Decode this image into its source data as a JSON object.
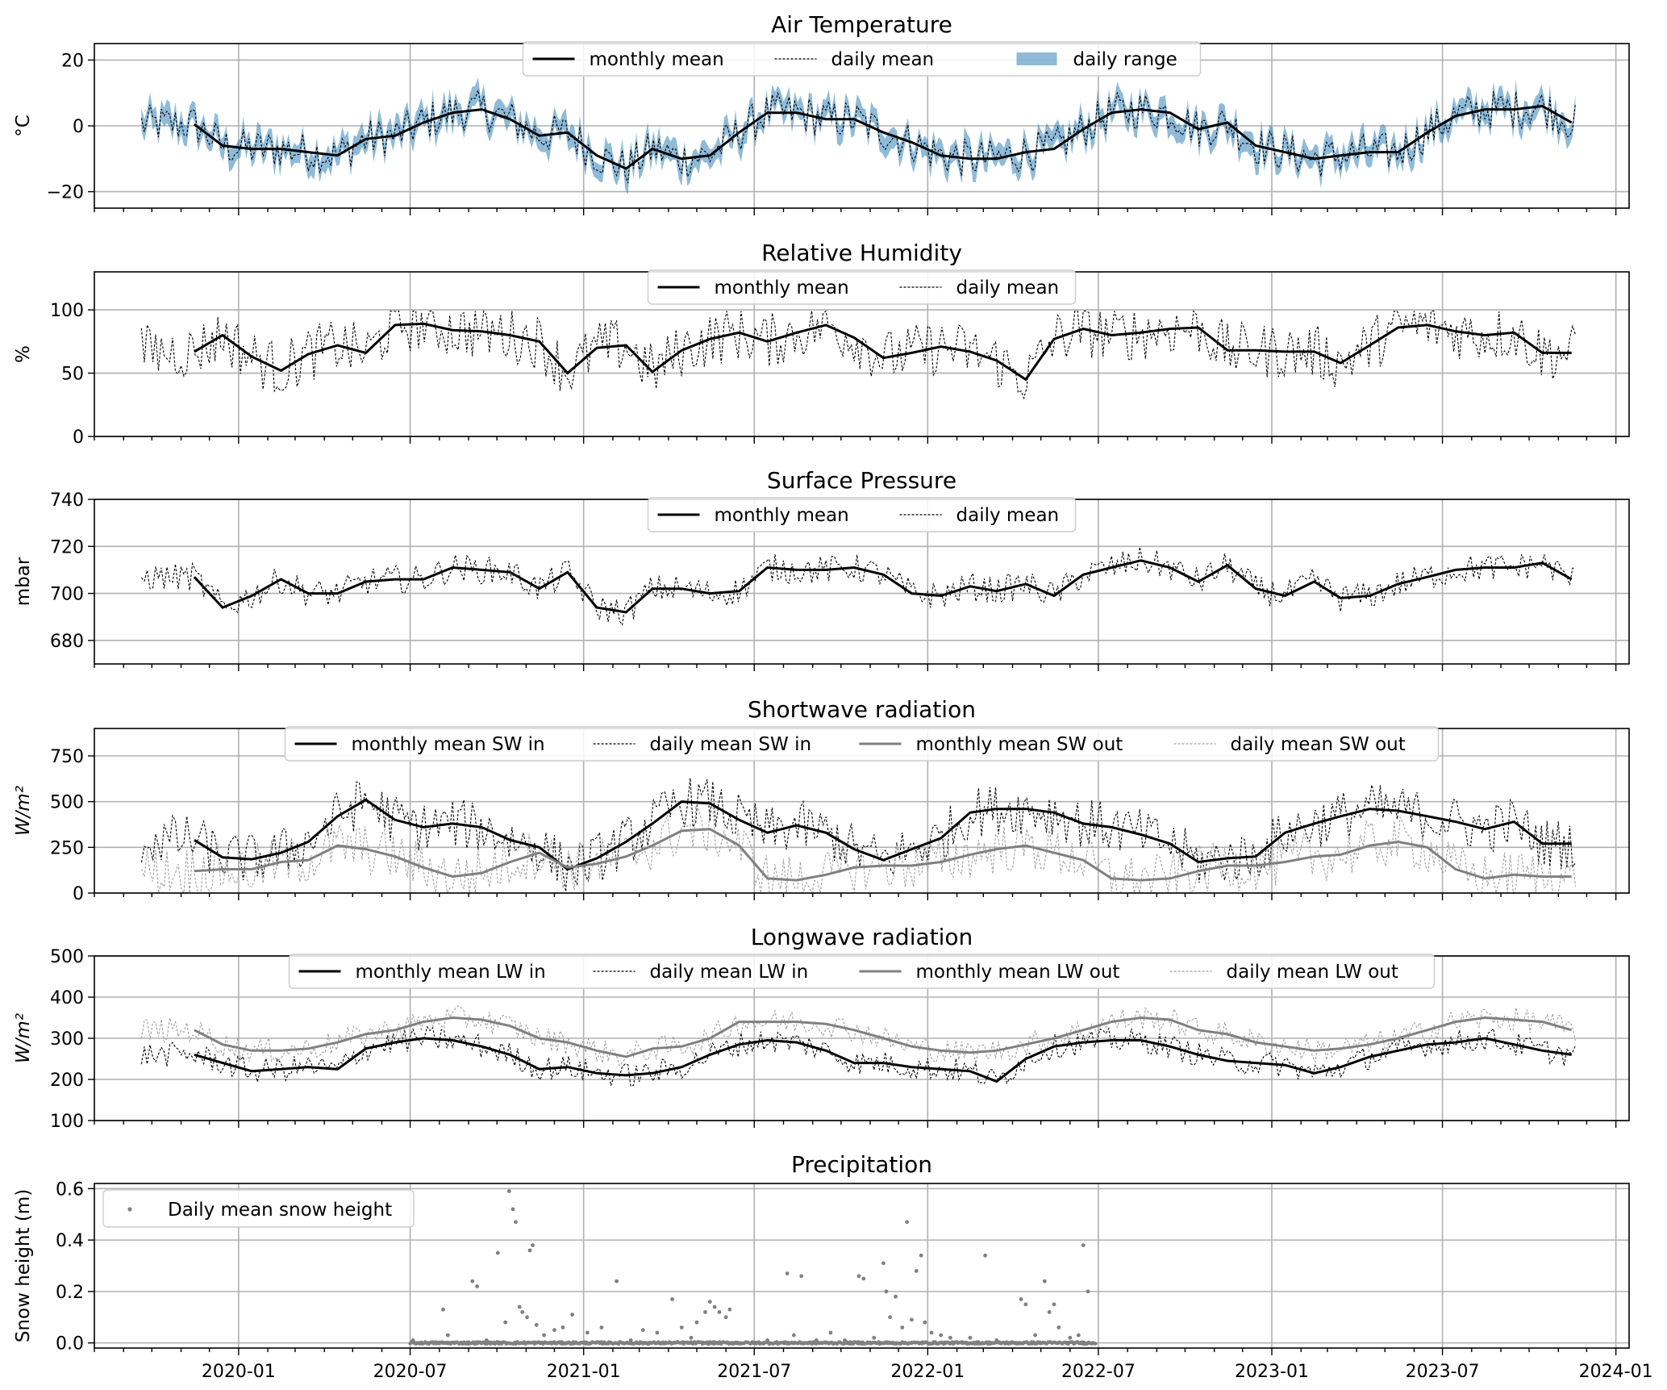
{
  "x_ticks": [
    "2020-01",
    "2020-07",
    "2021-01",
    "2021-07",
    "2022-01",
    "2022-07",
    "2023-01",
    "2023-07",
    "2024-01"
  ],
  "colors": {
    "black": "#000000",
    "gray": "#808080",
    "light_gray": "#a0a0a0",
    "range_blue": "#1f77b4",
    "grid": "#b0b0b0"
  },
  "chart_data": [
    {
      "type": "line",
      "title": "Air Temperature",
      "ylabel": "°C",
      "ylim": [
        -25,
        25
      ],
      "yticks": [
        -20,
        0,
        20
      ],
      "xlim": [
        "2019-08-01",
        "2024-01-15"
      ],
      "legend": [
        "monthly mean",
        "daily mean",
        "daily range"
      ],
      "monthly_x": [
        "2019-11",
        "2019-12",
        "2020-01",
        "2020-02",
        "2020-03",
        "2020-04",
        "2020-05",
        "2020-06",
        "2020-07",
        "2020-08",
        "2020-09",
        "2020-10",
        "2020-11",
        "2020-12",
        "2021-01",
        "2021-02",
        "2021-03",
        "2021-04",
        "2021-05",
        "2021-06",
        "2021-07",
        "2021-08",
        "2021-09",
        "2021-10",
        "2021-11",
        "2021-12",
        "2022-01",
        "2022-02",
        "2022-03",
        "2022-04",
        "2022-05",
        "2022-06",
        "2022-07",
        "2022-08",
        "2022-09",
        "2022-10",
        "2022-11",
        "2022-12",
        "2023-01",
        "2023-02",
        "2023-03",
        "2023-04",
        "2023-05",
        "2023-06",
        "2023-07",
        "2023-08",
        "2023-09",
        "2023-10",
        "2023-11"
      ],
      "monthly_mean": [
        0.5,
        -6,
        -7,
        -7,
        -8,
        -9,
        -4,
        -3,
        1,
        4,
        5,
        2,
        -3,
        -2,
        -9,
        -13,
        -7,
        -10,
        -9,
        -2,
        4,
        4,
        2,
        2,
        -2,
        -5,
        -9,
        -10,
        -10,
        -8,
        -7,
        -1,
        4,
        5,
        4,
        -1,
        1,
        -6,
        -8,
        -10,
        -9,
        -8,
        -8,
        -2,
        3,
        5,
        5,
        6,
        1
      ]
    },
    {
      "type": "line",
      "title": "Relative Humidity",
      "ylabel": "%",
      "ylim": [
        0,
        130
      ],
      "yticks": [
        0,
        50,
        100
      ],
      "legend": [
        "monthly mean",
        "daily mean"
      ],
      "monthly_x": [
        "2019-11",
        "2019-12",
        "2020-01",
        "2020-02",
        "2020-03",
        "2020-04",
        "2020-05",
        "2020-06",
        "2020-07",
        "2020-08",
        "2020-09",
        "2020-10",
        "2020-11",
        "2020-12",
        "2021-01",
        "2021-02",
        "2021-03",
        "2021-04",
        "2021-05",
        "2021-06",
        "2021-07",
        "2021-08",
        "2021-09",
        "2021-10",
        "2021-11",
        "2021-12",
        "2022-01",
        "2022-02",
        "2022-03",
        "2022-04",
        "2022-05",
        "2022-06",
        "2022-07",
        "2022-08",
        "2022-09",
        "2022-10",
        "2022-11",
        "2022-12",
        "2023-01",
        "2023-02",
        "2023-03",
        "2023-04",
        "2023-05",
        "2023-06",
        "2023-07",
        "2023-08",
        "2023-09",
        "2023-10",
        "2023-11"
      ],
      "monthly_mean": [
        67,
        80,
        63,
        52,
        65,
        72,
        66,
        88,
        89,
        84,
        83,
        80,
        75,
        50,
        70,
        72,
        51,
        68,
        77,
        82,
        75,
        82,
        88,
        78,
        62,
        66,
        71,
        67,
        60,
        45,
        77,
        85,
        80,
        82,
        85,
        86,
        68,
        68,
        67,
        67,
        58,
        72,
        86,
        88,
        83,
        80,
        82,
        66,
        66
      ]
    },
    {
      "type": "line",
      "title": "Surface Pressure",
      "ylabel": "mbar",
      "ylim": [
        670,
        740
      ],
      "yticks": [
        680,
        700,
        720,
        740
      ],
      "legend": [
        "monthly mean",
        "daily mean"
      ],
      "monthly_x": [
        "2019-11",
        "2019-12",
        "2020-01",
        "2020-02",
        "2020-03",
        "2020-04",
        "2020-05",
        "2020-06",
        "2020-07",
        "2020-08",
        "2020-09",
        "2020-10",
        "2020-11",
        "2020-12",
        "2021-01",
        "2021-02",
        "2021-03",
        "2021-04",
        "2021-05",
        "2021-06",
        "2021-07",
        "2021-08",
        "2021-09",
        "2021-10",
        "2021-11",
        "2021-12",
        "2022-01",
        "2022-02",
        "2022-03",
        "2022-04",
        "2022-05",
        "2022-06",
        "2022-07",
        "2022-08",
        "2022-09",
        "2022-10",
        "2022-11",
        "2022-12",
        "2023-01",
        "2023-02",
        "2023-03",
        "2023-04",
        "2023-05",
        "2023-06",
        "2023-07",
        "2023-08",
        "2023-09",
        "2023-10",
        "2023-11"
      ],
      "monthly_mean": [
        707,
        694,
        699,
        706,
        700,
        700,
        705,
        706,
        706,
        711,
        710,
        709,
        702,
        709,
        694,
        692,
        702,
        702,
        700,
        701,
        711,
        710,
        710,
        711,
        708,
        700,
        699,
        703,
        701,
        704,
        699,
        708,
        711,
        714,
        711,
        705,
        712,
        702,
        699,
        705,
        698,
        699,
        704,
        707,
        710,
        711,
        711,
        713,
        706
      ]
    },
    {
      "type": "line",
      "title": "Shortwave radiation",
      "ylabel": "W/m²",
      "ylim": [
        0,
        900
      ],
      "yticks": [
        0,
        250,
        500,
        750
      ],
      "legend": [
        "monthly mean SW in",
        "daily mean SW in",
        "monthly mean SW out",
        "daily mean SW out"
      ],
      "monthly_x": [
        "2019-11",
        "2019-12",
        "2020-01",
        "2020-02",
        "2020-03",
        "2020-04",
        "2020-05",
        "2020-06",
        "2020-07",
        "2020-08",
        "2020-09",
        "2020-10",
        "2020-11",
        "2020-12",
        "2021-01",
        "2021-02",
        "2021-03",
        "2021-04",
        "2021-05",
        "2021-06",
        "2021-07",
        "2021-08",
        "2021-09",
        "2021-10",
        "2021-11",
        "2021-12",
        "2022-01",
        "2022-02",
        "2022-03",
        "2022-04",
        "2022-05",
        "2022-06",
        "2022-07",
        "2022-08",
        "2022-09",
        "2022-10",
        "2022-11",
        "2022-12",
        "2023-01",
        "2023-02",
        "2023-03",
        "2023-04",
        "2023-05",
        "2023-06",
        "2023-07",
        "2023-08",
        "2023-09",
        "2023-10",
        "2023-11"
      ],
      "series": [
        {
          "name": "monthly mean SW in",
          "values": [
            290,
            195,
            185,
            220,
            280,
            420,
            510,
            400,
            360,
            380,
            360,
            290,
            250,
            130,
            190,
            280,
            380,
            500,
            490,
            400,
            330,
            370,
            330,
            240,
            180,
            240,
            300,
            440,
            460,
            460,
            440,
            380,
            360,
            320,
            270,
            170,
            190,
            200,
            330,
            380,
            420,
            460,
            450,
            420,
            390,
            350,
            390,
            270,
            270
          ]
        },
        {
          "name": "monthly mean SW out",
          "values": [
            120,
            130,
            130,
            170,
            180,
            260,
            240,
            200,
            140,
            90,
            110,
            170,
            220,
            140,
            160,
            200,
            260,
            340,
            350,
            260,
            80,
            70,
            100,
            140,
            150,
            150,
            170,
            210,
            240,
            260,
            220,
            180,
            80,
            70,
            80,
            120,
            150,
            150,
            170,
            200,
            210,
            260,
            280,
            250,
            130,
            80,
            100,
            90,
            90
          ]
        }
      ]
    },
    {
      "type": "line",
      "title": "Longwave radiation",
      "ylabel": "W/m²",
      "ylim": [
        100,
        500
      ],
      "yticks": [
        100,
        200,
        300,
        400,
        500
      ],
      "legend": [
        "monthly mean LW in",
        "daily mean LW in",
        "monthly mean LW out",
        "daily mean LW out"
      ],
      "monthly_x": [
        "2019-11",
        "2019-12",
        "2020-01",
        "2020-02",
        "2020-03",
        "2020-04",
        "2020-05",
        "2020-06",
        "2020-07",
        "2020-08",
        "2020-09",
        "2020-10",
        "2020-11",
        "2020-12",
        "2021-01",
        "2021-02",
        "2021-03",
        "2021-04",
        "2021-05",
        "2021-06",
        "2021-07",
        "2021-08",
        "2021-09",
        "2021-10",
        "2021-11",
        "2021-12",
        "2022-01",
        "2022-02",
        "2022-03",
        "2022-04",
        "2022-05",
        "2022-06",
        "2022-07",
        "2022-08",
        "2022-09",
        "2022-10",
        "2022-11",
        "2022-12",
        "2023-01",
        "2023-02",
        "2023-03",
        "2023-04",
        "2023-05",
        "2023-06",
        "2023-07",
        "2023-08",
        "2023-09",
        "2023-10",
        "2023-11"
      ],
      "series": [
        {
          "name": "monthly mean LW in",
          "values": [
            260,
            240,
            220,
            225,
            230,
            225,
            275,
            290,
            300,
            295,
            280,
            260,
            225,
            230,
            215,
            210,
            215,
            230,
            260,
            285,
            295,
            290,
            270,
            240,
            240,
            230,
            225,
            220,
            195,
            250,
            280,
            290,
            295,
            295,
            280,
            260,
            245,
            240,
            235,
            215,
            230,
            255,
            270,
            285,
            290,
            300,
            285,
            270,
            260
          ]
        },
        {
          "name": "monthly mean LW out",
          "values": [
            320,
            285,
            270,
            270,
            275,
            290,
            310,
            320,
            340,
            350,
            345,
            330,
            300,
            290,
            270,
            255,
            275,
            280,
            300,
            340,
            340,
            340,
            335,
            320,
            300,
            280,
            270,
            265,
            270,
            285,
            300,
            320,
            340,
            350,
            345,
            320,
            310,
            290,
            280,
            270,
            275,
            285,
            300,
            320,
            340,
            350,
            345,
            340,
            320
          ]
        }
      ]
    },
    {
      "type": "scatter",
      "title": "Precipitation",
      "ylabel": "Snow height (m)",
      "ylim": [
        -0.02,
        0.62
      ],
      "yticks": [
        0.0,
        0.2,
        0.4,
        0.6
      ],
      "legend": [
        "Daily mean snow height"
      ],
      "legend_position": "top-left",
      "points": [
        [
          "2020-07-04",
          0.01
        ],
        [
          "2020-07-20",
          0.0
        ],
        [
          "2020-08-05",
          0.13
        ],
        [
          "2020-08-10",
          0.03
        ],
        [
          "2020-08-25",
          0.0
        ],
        [
          "2020-09-05",
          0.24
        ],
        [
          "2020-09-10",
          0.22
        ],
        [
          "2020-09-20",
          0.01
        ],
        [
          "2020-10-02",
          0.35
        ],
        [
          "2020-10-10",
          0.08
        ],
        [
          "2020-10-14",
          0.59
        ],
        [
          "2020-10-18",
          0.52
        ],
        [
          "2020-10-21",
          0.47
        ],
        [
          "2020-10-25",
          0.14
        ],
        [
          "2020-10-28",
          0.12
        ],
        [
          "2020-11-02",
          0.1
        ],
        [
          "2020-11-05",
          0.36
        ],
        [
          "2020-11-08",
          0.38
        ],
        [
          "2020-11-12",
          0.07
        ],
        [
          "2020-11-20",
          0.03
        ],
        [
          "2020-12-01",
          0.05
        ],
        [
          "2020-12-10",
          0.06
        ],
        [
          "2020-12-20",
          0.11
        ],
        [
          "2021-01-05",
          0.04
        ],
        [
          "2021-01-20",
          0.06
        ],
        [
          "2021-02-05",
          0.24
        ],
        [
          "2021-02-20",
          0.01
        ],
        [
          "2021-03-05",
          0.05
        ],
        [
          "2021-03-20",
          0.04
        ],
        [
          "2021-04-05",
          0.17
        ],
        [
          "2021-04-15",
          0.06
        ],
        [
          "2021-04-25",
          0.02
        ],
        [
          "2021-05-01",
          0.08
        ],
        [
          "2021-05-10",
          0.12
        ],
        [
          "2021-05-15",
          0.16
        ],
        [
          "2021-05-20",
          0.14
        ],
        [
          "2021-05-25",
          0.12
        ],
        [
          "2021-06-01",
          0.1
        ],
        [
          "2021-06-05",
          0.13
        ],
        [
          "2021-07-15",
          0.01
        ],
        [
          "2021-08-05",
          0.27
        ],
        [
          "2021-08-12",
          0.03
        ],
        [
          "2021-08-20",
          0.26
        ],
        [
          "2021-09-05",
          0.01
        ],
        [
          "2021-09-20",
          0.04
        ],
        [
          "2021-10-05",
          0.01
        ],
        [
          "2021-10-20",
          0.26
        ],
        [
          "2021-10-25",
          0.25
        ],
        [
          "2021-11-05",
          0.02
        ],
        [
          "2021-11-15",
          0.31
        ],
        [
          "2021-11-18",
          0.2
        ],
        [
          "2021-11-22",
          0.1
        ],
        [
          "2021-11-28",
          0.18
        ],
        [
          "2021-12-05",
          0.06
        ],
        [
          "2021-12-10",
          0.47
        ],
        [
          "2021-12-15",
          0.09
        ],
        [
          "2021-12-20",
          0.28
        ],
        [
          "2021-12-25",
          0.34
        ],
        [
          "2021-12-29",
          0.08
        ],
        [
          "2022-01-05",
          0.04
        ],
        [
          "2022-01-15",
          0.03
        ],
        [
          "2022-01-25",
          0.02
        ],
        [
          "2022-02-15",
          0.02
        ],
        [
          "2022-03-03",
          0.34
        ],
        [
          "2022-03-15",
          0.01
        ],
        [
          "2022-04-10",
          0.17
        ],
        [
          "2022-04-15",
          0.15
        ],
        [
          "2022-04-25",
          0.03
        ],
        [
          "2022-05-05",
          0.24
        ],
        [
          "2022-05-10",
          0.12
        ],
        [
          "2022-05-15",
          0.15
        ],
        [
          "2022-05-20",
          0.06
        ],
        [
          "2022-06-01",
          0.02
        ],
        [
          "2022-06-10",
          0.03
        ],
        [
          "2022-06-15",
          0.38
        ],
        [
          "2022-06-20",
          0.2
        ],
        [
          "2022-06-25",
          0.0
        ]
      ],
      "baseline_span": [
        "2020-07-01",
        "2022-06-28"
      ],
      "baseline_value": 0.0
    }
  ]
}
